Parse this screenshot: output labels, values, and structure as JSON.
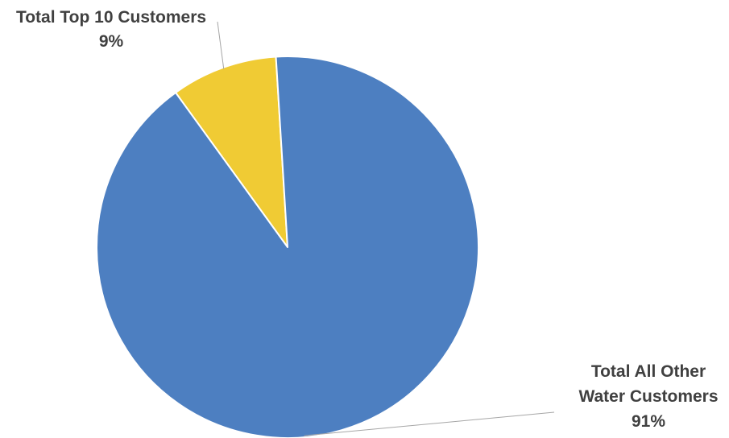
{
  "chart_data": {
    "type": "pie",
    "title": "",
    "slices": [
      {
        "label_lines": [
          "Total Top 10 Customers"
        ],
        "percent_label": "9%",
        "value": 9,
        "color": "#f0cb34"
      },
      {
        "label_lines": [
          "Total All Other",
          "Water Customers"
        ],
        "percent_label": "91%",
        "value": 91,
        "color": "#4d7fc1"
      }
    ],
    "legend": "none",
    "label_style": "outside-with-leader-lines"
  }
}
